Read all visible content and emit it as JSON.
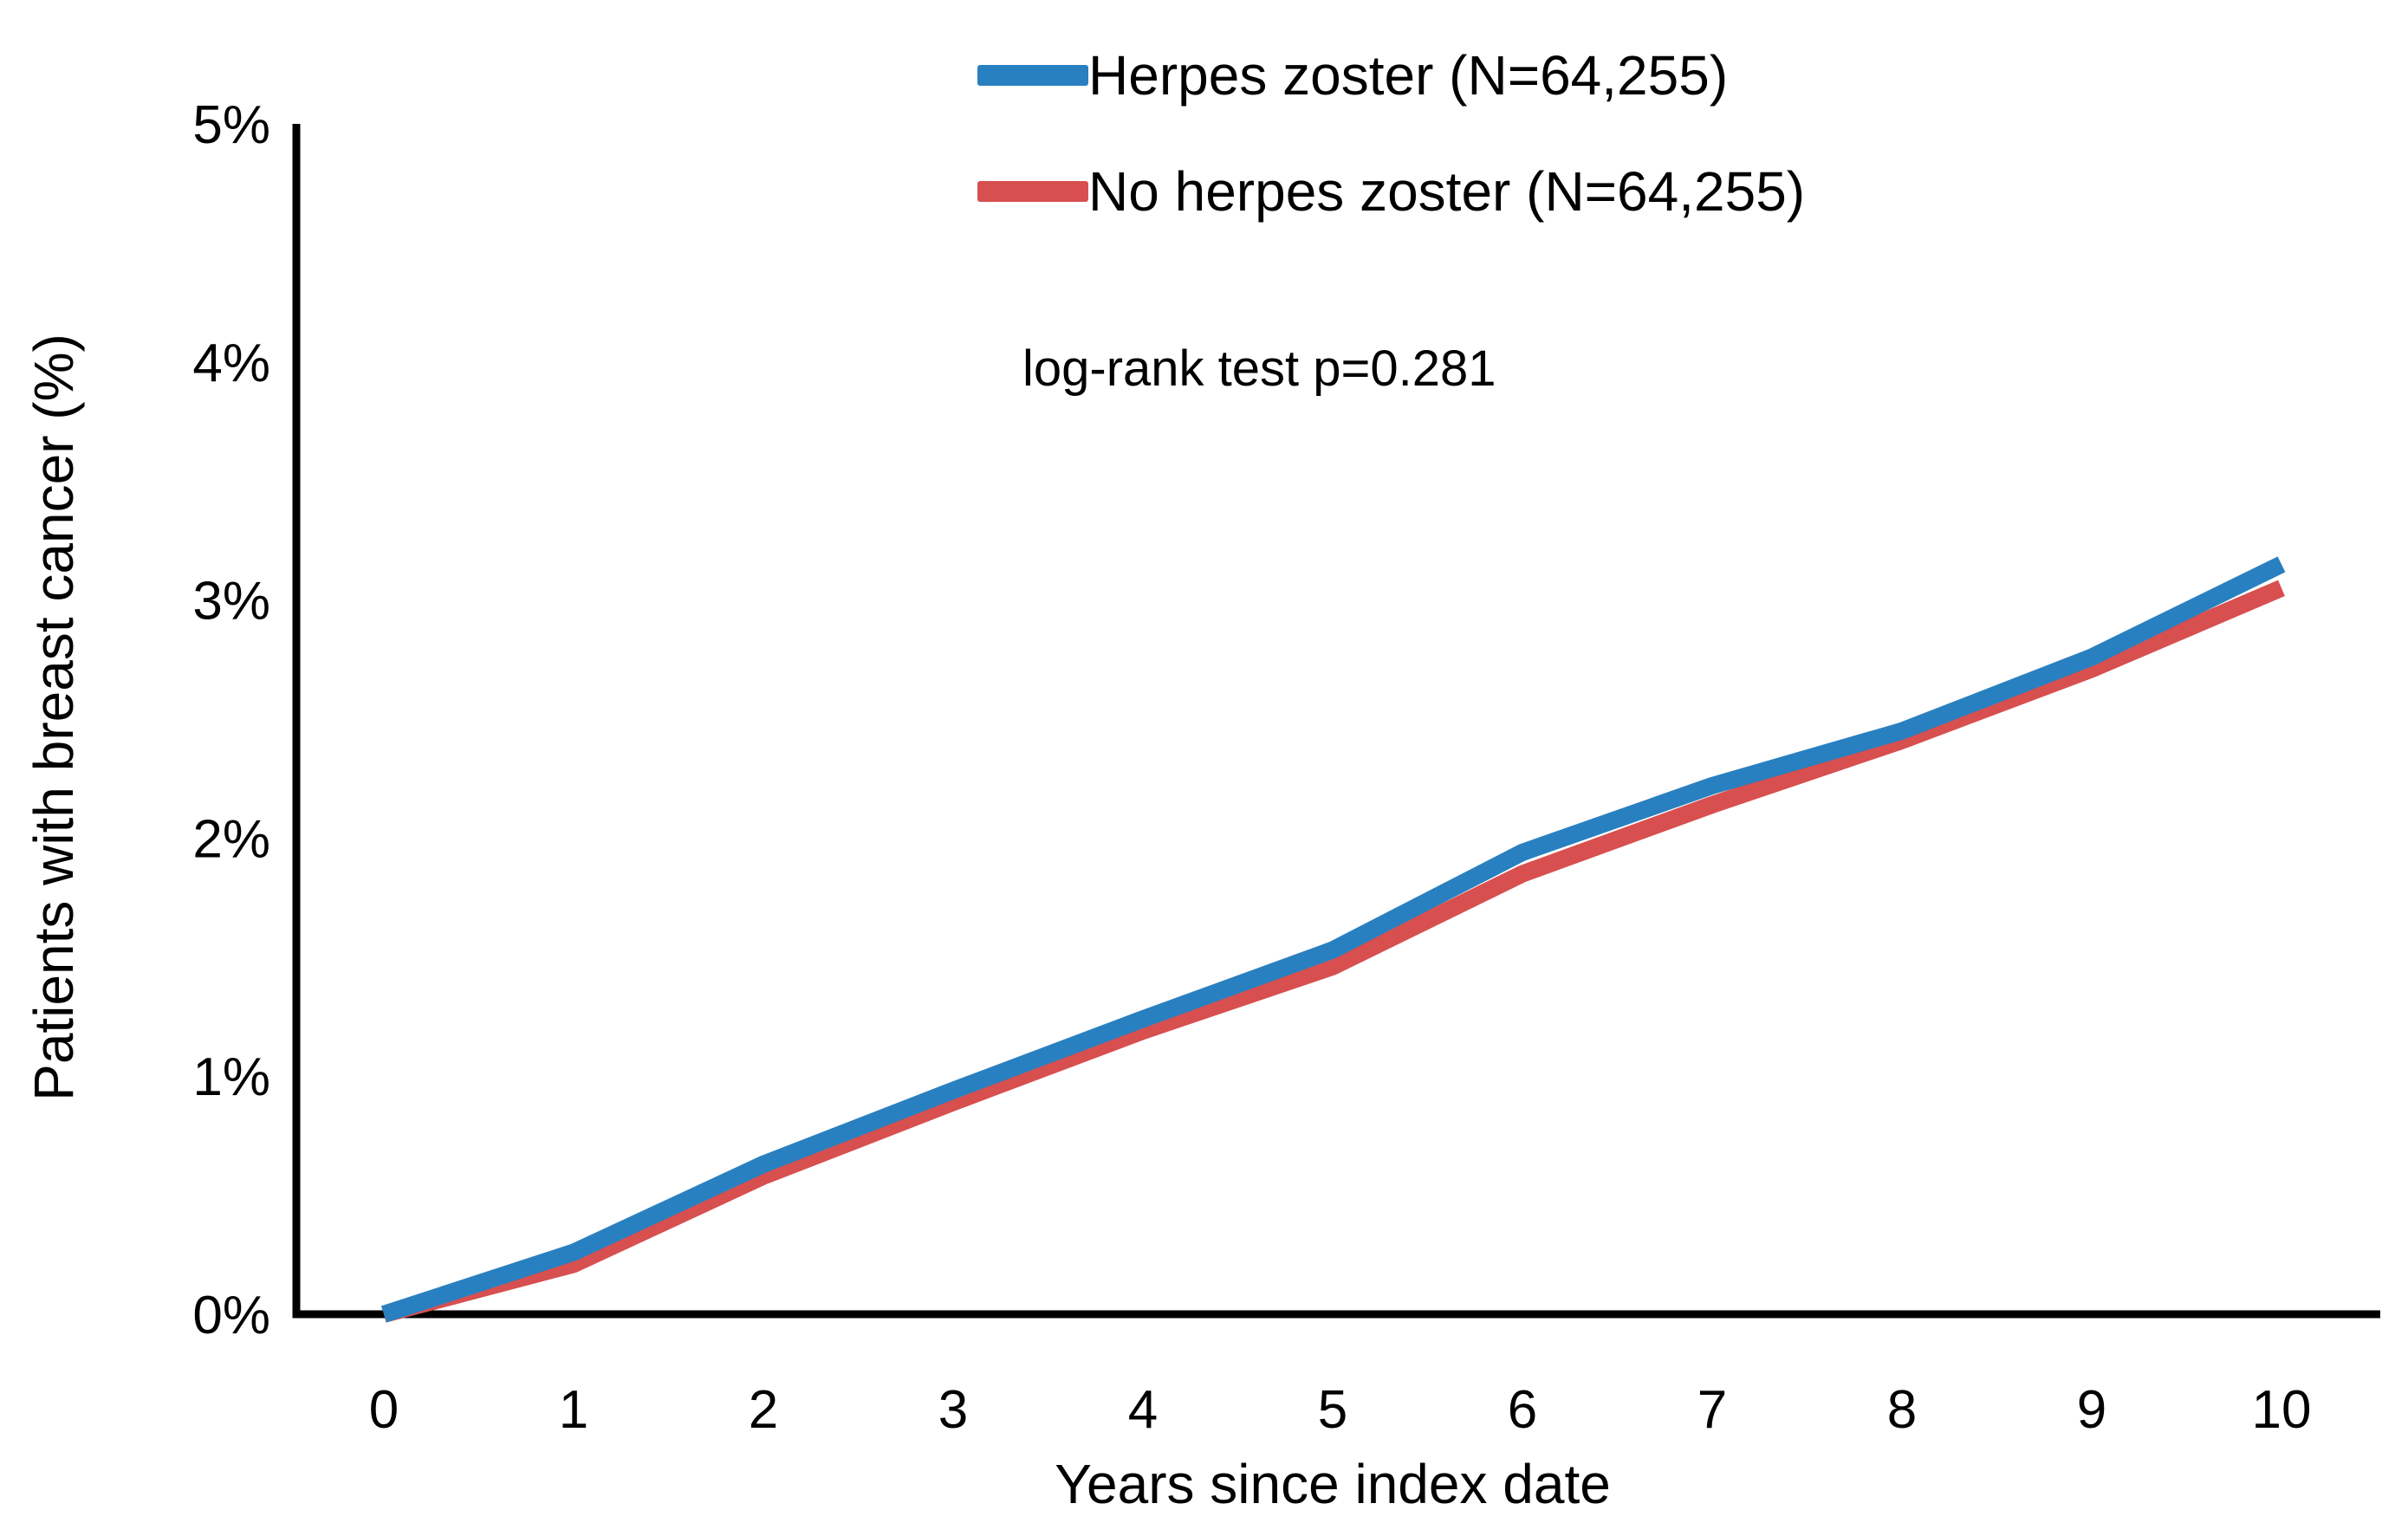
{
  "chart_data": {
    "type": "line",
    "title": "",
    "xlabel": "Years since index date",
    "ylabel": "Patients with breast cancer (%)",
    "annotation": "log-rank test p=0.281",
    "xlim": [
      0,
      10
    ],
    "ylim": [
      0,
      5
    ],
    "grid": false,
    "legend_position": "top-center",
    "x": [
      0,
      1,
      2,
      3,
      4,
      5,
      6,
      7,
      8,
      9,
      10
    ],
    "x_tick_labels": [
      "0",
      "1",
      "2",
      "3",
      "4",
      "5",
      "6",
      "7",
      "8",
      "9",
      "10"
    ],
    "y_ticks": [
      0,
      1,
      2,
      3,
      4,
      5
    ],
    "y_tick_labels": [
      "0%",
      "1%",
      "2%",
      "3%",
      "4%",
      "5%"
    ],
    "series": [
      {
        "name": "Herpes zoster (N=64,255)",
        "color": "#2980c0",
        "values": [
          0,
          0.26,
          0.63,
          0.94,
          1.24,
          1.53,
          1.94,
          2.22,
          2.45,
          2.76,
          3.15
        ]
      },
      {
        "name": "No herpes zoster (N=64,255)",
        "color": "#d84f4f",
        "values": [
          0,
          0.21,
          0.58,
          0.89,
          1.19,
          1.46,
          1.85,
          2.14,
          2.41,
          2.71,
          3.05
        ]
      }
    ]
  },
  "colors": {
    "axis": "#000000",
    "text": "#000000",
    "series1": "#2980c0",
    "series2": "#d84f4f"
  }
}
